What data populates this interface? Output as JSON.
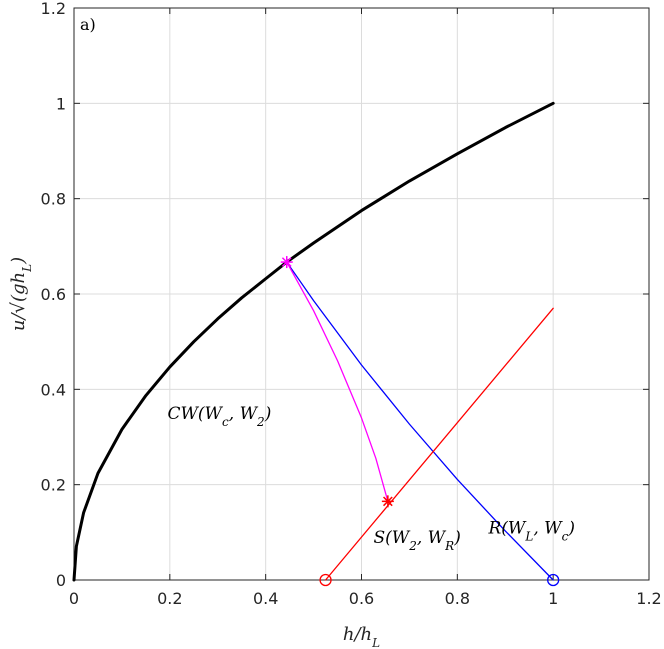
{
  "chart_data": {
    "type": "line",
    "panel_label": "a)",
    "xlabel": "h/h_L",
    "ylabel": "u/√(gh_L)",
    "xlim": [
      0,
      1.2
    ],
    "ylim": [
      0,
      1.2
    ],
    "xticks": [
      0,
      0.2,
      0.4,
      0.6,
      0.8,
      1,
      1.2
    ],
    "yticks": [
      0,
      0.2,
      0.4,
      0.6,
      0.8,
      1,
      1.2
    ],
    "xtick_labels": [
      "0",
      "0.2",
      "0.4",
      "0.6",
      "0.8",
      "1",
      "1.2"
    ],
    "ytick_labels": [
      "0",
      "0.2",
      "0.4",
      "0.6",
      "0.8",
      "1",
      "1.2"
    ],
    "grid": true,
    "series": [
      {
        "color": "#000000",
        "curve": "u = sqrt(h/h_L)",
        "x": [
          0,
          0.005,
          0.02,
          0.05,
          0.1,
          0.15,
          0.2,
          0.25,
          0.3,
          0.35,
          0.4,
          0.444,
          0.5,
          0.6,
          0.7,
          0.8,
          0.9,
          1.0
        ],
        "y": [
          0,
          0.071,
          0.141,
          0.224,
          0.316,
          0.387,
          0.447,
          0.5,
          0.548,
          0.592,
          0.632,
          0.667,
          0.707,
          0.775,
          0.837,
          0.894,
          0.949,
          1.0
        ]
      },
      {
        "color": "#0000ff",
        "x": [
          0.444,
          0.5,
          0.6,
          0.7,
          0.8,
          0.9,
          1.0
        ],
        "y": [
          0.667,
          0.586,
          0.451,
          0.327,
          0.211,
          0.103,
          0.0
        ]
      },
      {
        "color": "#ff0000",
        "x": [
          0.525,
          1.0
        ],
        "y": [
          0.0,
          0.57
        ]
      },
      {
        "color": "#ff00ff",
        "x": [
          0.444,
          0.5,
          0.55,
          0.6,
          0.63,
          0.655
        ],
        "y": [
          0.667,
          0.565,
          0.46,
          0.34,
          0.255,
          0.165
        ]
      }
    ],
    "markers": [
      {
        "type": "star",
        "color": "#ff00ff",
        "x": 0.444,
        "y": 0.667
      },
      {
        "type": "star",
        "color": "#ff0000",
        "x": 0.655,
        "y": 0.165
      },
      {
        "type": "circle",
        "color": "#ff0000",
        "x": 0.525,
        "y": 0.0
      },
      {
        "type": "circle",
        "color": "#0000ff",
        "x": 1.0,
        "y": 0.0
      }
    ],
    "annotations": [
      {
        "text": "CW(W_c, W_2)",
        "x": 0.195,
        "y": 0.35
      },
      {
        "text": "S(W_2, W_R)",
        "x": 0.625,
        "y": 0.09
      },
      {
        "text": "R(W_L, W_c)",
        "x": 0.865,
        "y": 0.11
      }
    ]
  }
}
